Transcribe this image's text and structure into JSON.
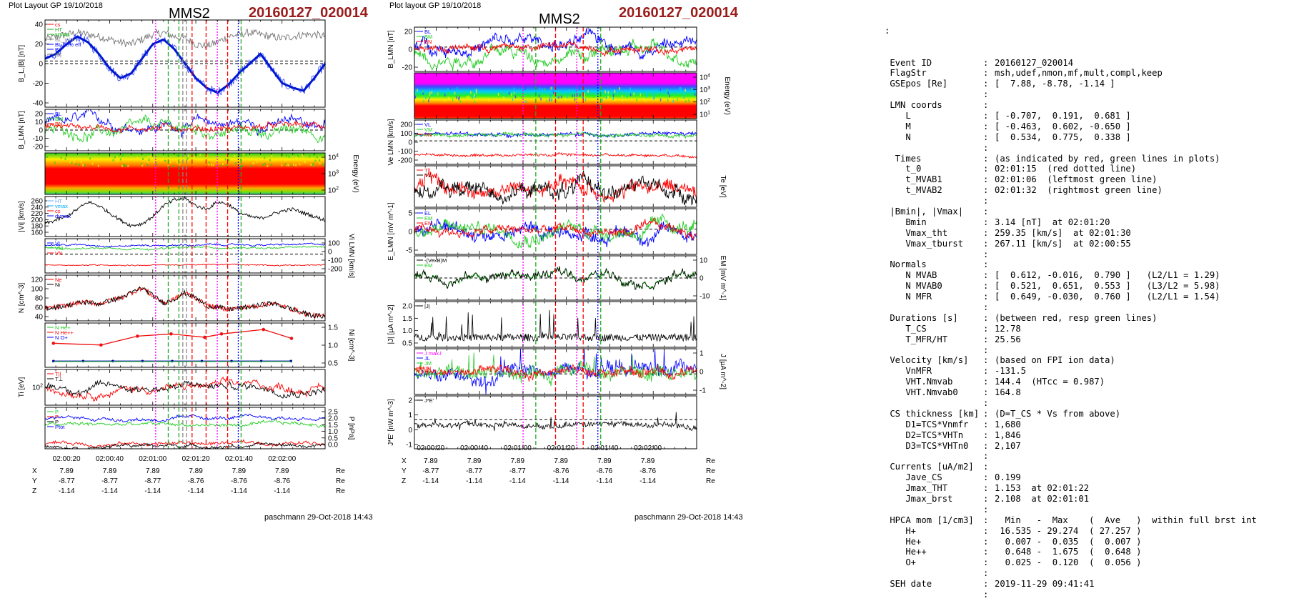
{
  "left_panel": {
    "header_left": "Plot Layout GP 19/10/2018",
    "spacecraft": "MMS2",
    "event": "20160127_020014",
    "footer": "paschmann 29-Oct-2018 14:43",
    "time_ticks": [
      "02:00:20",
      "02:00:40",
      "02:01:00",
      "02:01:20",
      "02:01:40",
      "02:02:00"
    ],
    "ephem": {
      "rows": [
        {
          "label": "X",
          "values": [
            "7.89",
            "7.89",
            "7.89",
            "7.89",
            "7.89",
            "7.89"
          ],
          "unit": "Re"
        },
        {
          "label": "Y",
          "values": [
            "-8.77",
            "-8.77",
            "-8.77",
            "-8.76",
            "-8.76",
            "-8.76"
          ],
          "unit": "Re"
        },
        {
          "label": "Z",
          "values": [
            "-1.14",
            "-1.14",
            "-1.14",
            "-1.14",
            "-1.14",
            "-1.14"
          ],
          "unit": "Re"
        }
      ]
    },
    "panels": [
      {
        "ylabel": "B_L,|B| [nT]",
        "yticks": [
          "40",
          "20",
          "0",
          "-20",
          "-40"
        ],
        "legend": [
          "cs",
          "HT",
          "MVAB",
          "BL_mim",
          "BL 50% eff",
          "BL",
          "|B|"
        ]
      },
      {
        "ylabel": "B_LMN [nT]",
        "yticks": [
          "20",
          "10",
          "0",
          "-10",
          "-20"
        ],
        "legend": [
          "BL",
          "BM",
          "BN"
        ]
      },
      {
        "ylabel": "Energy (eV)",
        "yticks": [
          "10^4",
          "10^3",
          "10^2"
        ],
        "legend": []
      },
      {
        "ylabel": "|Vi| [km/s]",
        "yticks": [
          "260",
          "240",
          "220",
          "200",
          "180",
          "160"
        ],
        "legend": [
          "HT",
          "vmax",
          "cs",
          "dvmax"
        ]
      },
      {
        "ylabel": "Vi LMN [km/s]",
        "yticks": [
          "100",
          "0",
          "-100",
          "-200"
        ],
        "legend": [
          "VL",
          "VM",
          "VN"
        ]
      },
      {
        "ylabel": "N [cm^-3]",
        "yticks": [
          "120",
          "100",
          "80",
          "60",
          "40"
        ],
        "legend": [
          "Ne",
          "Ni"
        ]
      },
      {
        "ylabel": "Ni [cm^-3]",
        "yticks": [
          "1.5",
          "1.0",
          "0.5"
        ],
        "legend": [
          "N He+",
          "N He++",
          "N O+"
        ]
      },
      {
        "ylabel": "Ti [eV]",
        "yticks": [
          "10^2"
        ],
        "legend": [
          "T||",
          "T⊥"
        ]
      },
      {
        "ylabel": "P [nPa]",
        "yticks": [
          "2.5",
          "2.0",
          "1.5",
          "1.0",
          "0.5",
          "0.0"
        ],
        "legend": [
          "P",
          "P",
          "P",
          "Ptot"
        ]
      }
    ]
  },
  "middle_panel": {
    "header_left": "Plot layout GP 19/10/2018",
    "spacecraft": "MMS2",
    "event": "20160127_020014",
    "footer": "paschmann 29-Oct-2018 14:43",
    "time_ticks": [
      "02:00:20",
      "02:00:40",
      "02:01:00",
      "02:01:20",
      "02:01:40",
      "02:02:00"
    ],
    "ephem": {
      "rows": [
        {
          "label": "X",
          "values": [
            "7.89",
            "7.89",
            "7.89",
            "7.89",
            "7.89",
            "7.89"
          ],
          "unit": "Re"
        },
        {
          "label": "Y",
          "values": [
            "-8.77",
            "-8.77",
            "-8.77",
            "-8.76",
            "-8.76",
            "-8.76"
          ],
          "unit": "Re"
        },
        {
          "label": "Z",
          "values": [
            "-1.14",
            "-1.14",
            "-1.14",
            "-1.14",
            "-1.14",
            "-1.14"
          ],
          "unit": "Re"
        }
      ]
    },
    "panels": [
      {
        "ylabel": "B_LMN [nT]",
        "yticks": [
          "20",
          "0",
          "-20"
        ],
        "legend": [
          "BL",
          "BM",
          "BN"
        ]
      },
      {
        "ylabel": "Energy (eV)",
        "yticks": [
          "10^4",
          "10^3",
          "10^2",
          "10^1"
        ],
        "legend": []
      },
      {
        "ylabel": "Ve LMN [km/s]",
        "yticks": [
          "200",
          "100",
          "0",
          "-100",
          "-200"
        ],
        "legend": [
          "VL",
          "VM",
          "VN"
        ]
      },
      {
        "ylabel": "Te [eV]",
        "yticks": [],
        "legend": [
          "T||",
          "T⊥"
        ]
      },
      {
        "ylabel": "E_LMN [mV m^-1]",
        "yticks": [
          "5",
          "0",
          "-5"
        ],
        "legend": [
          "EL",
          "EM",
          "EN"
        ]
      },
      {
        "ylabel": "EM [mV m^-1]",
        "yticks": [
          "10",
          "0",
          "-10"
        ],
        "legend": [
          "-(VexB)M",
          "EM"
        ]
      },
      {
        "ylabel": "|J| [µA m^-2]",
        "yticks": [
          "2.0",
          "1.5",
          "1.0",
          "0.5"
        ],
        "legend": [
          "|J|"
        ]
      },
      {
        "ylabel": "J [µA m^-2]",
        "yticks": [
          "1",
          "0",
          "-1"
        ],
        "legend": [
          "J maxJ",
          "JL",
          "JM",
          "JN"
        ]
      },
      {
        "ylabel": "J*E' [nW m^-3]",
        "yticks": [
          "2",
          "1",
          "0",
          "-1"
        ],
        "legend": [
          "J*E'"
        ]
      }
    ]
  },
  "summary": {
    "top_mark": ":",
    "rows": [
      {
        "label": "Event ID",
        "value": "20160127_020014"
      },
      {
        "label": "FlagStr",
        "value": "msh,udef,nmon,mf,mult,compl,keep"
      },
      {
        "label": "GSEpos [Re]",
        "value": "[  7.88, -8.78, -1.14 ]"
      },
      {
        "label": "",
        "value": ""
      },
      {
        "label": "LMN coords",
        "value": ""
      },
      {
        "label": "   L",
        "value": "[ -0.707,  0.191,  0.681 ]"
      },
      {
        "label": "   M",
        "value": "[ -0.463,  0.602, -0.650 ]"
      },
      {
        "label": "   N",
        "value": "[  0.534,  0.775,  0.338 ]"
      },
      {
        "label": "",
        "value": ""
      },
      {
        "label": " Times",
        "value": "(as indicated by red, green lines in plots)"
      },
      {
        "label": "   t_0",
        "value": "02:01:15  (red dotted line)"
      },
      {
        "label": "   t_MVAB1",
        "value": "02:01:06  (leftmost green line)"
      },
      {
        "label": "   t_MVAB2",
        "value": "02:01:32  (rightmost green line)"
      },
      {
        "label": "",
        "value": ""
      },
      {
        "label": "|Bmin|, |Vmax|",
        "value": ""
      },
      {
        "label": "   Bmin",
        "value": "3.14 [nT]  at 02:01:20"
      },
      {
        "label": "   Vmax_tht",
        "value": "259.35 [km/s]  at 02:01:30"
      },
      {
        "label": "   Vmax_tburst",
        "value": "267.11 [km/s]  at 02:00:55"
      },
      {
        "label": "",
        "value": ""
      },
      {
        "label": "Normals",
        "value": ""
      },
      {
        "label": "   N MVAB",
        "value": "[  0.612, -0.016,  0.790 ]   (L2/L1 = 1.29)"
      },
      {
        "label": "   N MVAB0",
        "value": "[  0.521,  0.651,  0.553 ]   (L3/L2 = 5.98)"
      },
      {
        "label": "   N MFR",
        "value": "[  0.649, -0.030,  0.760 ]   (L2/L1 = 1.54)"
      },
      {
        "label": "",
        "value": ""
      },
      {
        "label": "Durations [s]",
        "value": "(between red, resp green lines)"
      },
      {
        "label": "   T_CS",
        "value": "12.78"
      },
      {
        "label": "   T_MFR/HT",
        "value": "25.56"
      },
      {
        "label": "",
        "value": ""
      },
      {
        "label": "Velocity [km/s]",
        "value": "(based on FPI ion data)"
      },
      {
        "label": "   VnMFR",
        "value": "-131.5"
      },
      {
        "label": "   VHT.Nmvab",
        "value": "144.4  (HTcc = 0.987)"
      },
      {
        "label": "   VHT.Nmvab0",
        "value": "164.8"
      },
      {
        "label": "",
        "value": ""
      },
      {
        "label": "CS thickness [km]",
        "value": "(D=T_CS * Vs from above)"
      },
      {
        "label": "   D1=TCS*Vnmfr",
        "value": "1,680"
      },
      {
        "label": "   D2=TCS*VHTn",
        "value": "1,846"
      },
      {
        "label": "   D3=TCS*VHTn0",
        "value": "2,107"
      },
      {
        "label": "",
        "value": ""
      },
      {
        "label": "Currents [uA/m2]",
        "value": ""
      },
      {
        "label": "   Jave_CS",
        "value": "0.199"
      },
      {
        "label": "   Jmax_THT",
        "value": "1.153  at 02:01:22"
      },
      {
        "label": "   Jmax_brst",
        "value": "2.108  at 02:01:01"
      },
      {
        "label": "",
        "value": ""
      },
      {
        "label": "HPCA mom [1/cm3]",
        "value": "  Min   -  Max    (  Ave   )  within full brst int"
      },
      {
        "label": "   H+",
        "value": " 16.535 - 29.274  ( 27.257 )"
      },
      {
        "label": "   He+",
        "value": "  0.007 -  0.035  (  0.007 )"
      },
      {
        "label": "   He++",
        "value": "  0.648 -  1.675  (  0.648 )"
      },
      {
        "label": "   O+",
        "value": "  0.025 -  0.120  (  0.056 )"
      },
      {
        "label": "",
        "value": ""
      },
      {
        "label": "SEH date",
        "value": "2019-11-29 09:41:41"
      },
      {
        "label": "",
        "value": ""
      }
    ]
  },
  "chart_data": [
    {
      "type": "line",
      "title": "MMS2 20160127_020014",
      "x_range": [
        "02:00:10",
        "02:02:20"
      ],
      "marker_times": {
        "red_dashed": [
          "02:01:09",
          "02:01:15",
          "02:01:22"
        ],
        "green_dashed": [
          "02:01:06",
          "02:01:32"
        ],
        "magenta_dotted": [
          "02:01:01",
          "02:01:27"
        ],
        "blue_dotted": [
          "02:01:30"
        ]
      },
      "series": [
        {
          "name": "BL",
          "panel": "B_L,|B| [nT]",
          "values": [
            5,
            10,
            20,
            28,
            22,
            10,
            -5,
            -15,
            -10,
            5,
            20,
            25,
            15,
            0,
            -15,
            -25,
            -30,
            -22,
            -10,
            0,
            10,
            -5,
            -20,
            -25,
            -28,
            -15,
            0
          ]
        },
        {
          "name": "|B|",
          "panel": "B_L,|B| [nT]",
          "values": [
            25,
            28,
            30,
            32,
            30,
            28,
            25,
            22,
            20,
            25,
            30,
            32,
            28,
            26,
            20,
            18,
            22,
            28,
            30,
            32,
            30,
            28,
            26,
            28,
            30,
            30,
            28
          ]
        },
        {
          "name": "Ne",
          "panel": "N [cm^-3]",
          "values": [
            60,
            62,
            65,
            70,
            72,
            68,
            75,
            80,
            90,
            100,
            85,
            70,
            78,
            90,
            80,
            65,
            62,
            58,
            60,
            62,
            66,
            70,
            64,
            58,
            50,
            45,
            44
          ]
        },
        {
          "name": "|Vi|",
          "panel": "|Vi| [km/s]",
          "values": [
            190,
            200,
            210,
            230,
            250,
            240,
            220,
            200,
            185,
            190,
            210,
            240,
            255,
            260,
            240,
            230,
            250,
            245,
            220,
            210,
            205,
            215,
            225,
            230,
            220,
            210,
            200
          ]
        }
      ]
    }
  ]
}
